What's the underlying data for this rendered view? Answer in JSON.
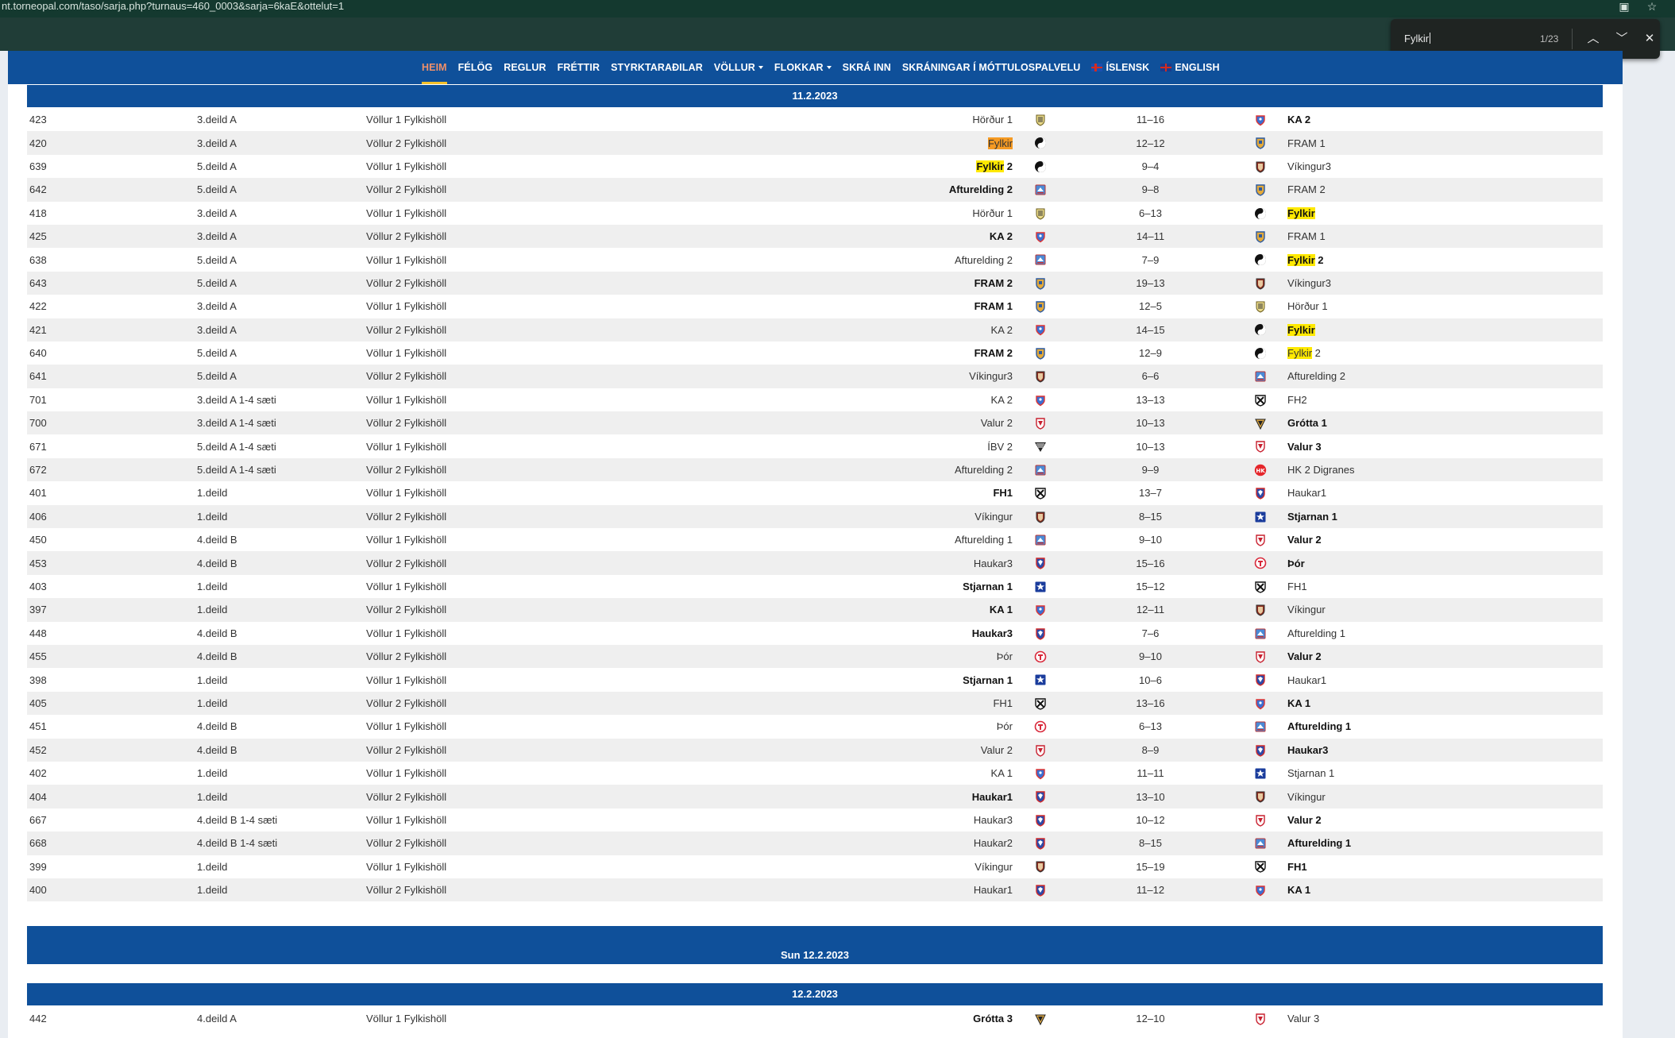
{
  "browser": {
    "url": "nt.torneopal.com/taso/sarja.php?turnaus=460_0003&sarja=6kaE&ottelut=1"
  },
  "find": {
    "query": "Fylkir",
    "count": "1/23"
  },
  "nav": {
    "items": [
      {
        "label": "HEIM",
        "active": true
      },
      {
        "label": "FÉLÖG"
      },
      {
        "label": "REGLUR"
      },
      {
        "label": "FRÉTTIR"
      },
      {
        "label": "STYRKTARAÐILAR"
      },
      {
        "label": "VÖLLUR",
        "dropdown": true
      },
      {
        "label": "FLOKKAR",
        "dropdown": true
      },
      {
        "label": "SKRÁ INN"
      },
      {
        "label": "SKRÁNINGAR Í MÓTTULOSPALVELU"
      },
      {
        "label": "ÍSLENSK",
        "flag": "is"
      },
      {
        "label": "ENGLISH",
        "flag": "en"
      }
    ]
  },
  "day1": {
    "date": "11.2.2023",
    "games": [
      {
        "no": "423",
        "div": "3.deild A",
        "venue": "Völlur 1 Fylkishöll",
        "home": "Hörður 1",
        "hc": "hordur",
        "score": "11–16",
        "away": "KA 2",
        "ac": "ka",
        "w": "a"
      },
      {
        "no": "420",
        "div": "3.deild A",
        "venue": "Völlur 2 Fylkishöll",
        "home": "Fylkir",
        "hc": "fylkir",
        "score": "12–12",
        "away": "FRAM 1",
        "ac": "fram",
        "w": "",
        "hl": "home",
        "cur": true
      },
      {
        "no": "639",
        "div": "5.deild A",
        "venue": "Völlur 1 Fylkishöll",
        "home": "Fylkir 2",
        "hc": "fylkir",
        "score": "9–4",
        "away": "Víkingur3",
        "ac": "vikingur",
        "w": "h",
        "hl": "home"
      },
      {
        "no": "642",
        "div": "5.deild A",
        "venue": "Völlur 2 Fylkishöll",
        "home": "Afturelding 2",
        "hc": "afturelding",
        "score": "9–8",
        "away": "FRAM 2",
        "ac": "fram",
        "w": "h"
      },
      {
        "no": "418",
        "div": "3.deild A",
        "venue": "Völlur 1 Fylkishöll",
        "home": "Hörður 1",
        "hc": "hordur",
        "score": "6–13",
        "away": "Fylkir",
        "ac": "fylkir",
        "w": "a",
        "hl": "away"
      },
      {
        "no": "425",
        "div": "3.deild A",
        "venue": "Völlur 2 Fylkishöll",
        "home": "KA 2",
        "hc": "ka",
        "score": "14–11",
        "away": "FRAM 1",
        "ac": "fram",
        "w": "h"
      },
      {
        "no": "638",
        "div": "5.deild A",
        "venue": "Völlur 1 Fylkishöll",
        "home": "Afturelding 2",
        "hc": "afturelding",
        "score": "7–9",
        "away": "Fylkir 2",
        "ac": "fylkir",
        "w": "a",
        "hl": "away"
      },
      {
        "no": "643",
        "div": "5.deild A",
        "venue": "Völlur 2 Fylkishöll",
        "home": "FRAM 2",
        "hc": "fram",
        "score": "19–13",
        "away": "Víkingur3",
        "ac": "vikingur",
        "w": "h"
      },
      {
        "no": "422",
        "div": "3.deild A",
        "venue": "Völlur 1 Fylkishöll",
        "home": "FRAM 1",
        "hc": "fram",
        "score": "12–5",
        "away": "Hörður 1",
        "ac": "hordur",
        "w": "h"
      },
      {
        "no": "421",
        "div": "3.deild A",
        "venue": "Völlur 2 Fylkishöll",
        "home": "KA 2",
        "hc": "ka",
        "score": "14–15",
        "away": "Fylkir",
        "ac": "fylkir",
        "w": "a",
        "hl": "away"
      },
      {
        "no": "640",
        "div": "5.deild A",
        "venue": "Völlur 1 Fylkishöll",
        "home": "FRAM 2",
        "hc": "fram",
        "score": "12–9",
        "away": "Fylkir 2",
        "ac": "fylkir",
        "w": "h",
        "hl": "away"
      },
      {
        "no": "641",
        "div": "5.deild A",
        "venue": "Völlur 2 Fylkishöll",
        "home": "Víkingur3",
        "hc": "vikingur",
        "score": "6–6",
        "away": "Afturelding 2",
        "ac": "afturelding",
        "w": ""
      },
      {
        "no": "701",
        "div": "3.deild A 1-4 sæti",
        "venue": "Völlur 1 Fylkishöll",
        "home": "KA 2",
        "hc": "ka",
        "score": "13–13",
        "away": "FH2",
        "ac": "fh",
        "w": ""
      },
      {
        "no": "700",
        "div": "3.deild A 1-4 sæti",
        "venue": "Völlur 2 Fylkishöll",
        "home": "Valur 2",
        "hc": "valur",
        "score": "10–13",
        "away": "Grótta 1",
        "ac": "grotta",
        "w": "a"
      },
      {
        "no": "671",
        "div": "5.deild A 1-4 sæti",
        "venue": "Völlur 1 Fylkishöll",
        "home": "ÍBV 2",
        "hc": "ibv",
        "score": "10–13",
        "away": "Valur 3",
        "ac": "valur",
        "w": "a"
      },
      {
        "no": "672",
        "div": "5.deild A 1-4 sæti",
        "venue": "Völlur 2 Fylkishöll",
        "home": "Afturelding 2",
        "hc": "afturelding",
        "score": "9–9",
        "away": "HK 2 Digranes",
        "ac": "hk",
        "w": ""
      },
      {
        "no": "401",
        "div": "1.deild",
        "venue": "Völlur 1 Fylkishöll",
        "home": "FH1",
        "hc": "fh",
        "score": "13–7",
        "away": "Haukar1",
        "ac": "haukar",
        "w": "h"
      },
      {
        "no": "406",
        "div": "1.deild",
        "venue": "Völlur 2 Fylkishöll",
        "home": "Víkingur",
        "hc": "vikingur",
        "score": "8–15",
        "away": "Stjarnan 1",
        "ac": "stjarnan",
        "w": "a"
      },
      {
        "no": "450",
        "div": "4.deild B",
        "venue": "Völlur 1 Fylkishöll",
        "home": "Afturelding 1",
        "hc": "afturelding",
        "score": "9–10",
        "away": "Valur 2",
        "ac": "valur",
        "w": "a"
      },
      {
        "no": "453",
        "div": "4.deild B",
        "venue": "Völlur 2 Fylkishöll",
        "home": "Haukar3",
        "hc": "haukar",
        "score": "15–16",
        "away": "Þór",
        "ac": "thor",
        "w": "a"
      },
      {
        "no": "403",
        "div": "1.deild",
        "venue": "Völlur 1 Fylkishöll",
        "home": "Stjarnan 1",
        "hc": "stjarnan",
        "score": "15–12",
        "away": "FH1",
        "ac": "fh",
        "w": "h"
      },
      {
        "no": "397",
        "div": "1.deild",
        "venue": "Völlur 2 Fylkishöll",
        "home": "KA 1",
        "hc": "ka",
        "score": "12–11",
        "away": "Víkingur",
        "ac": "vikingur",
        "w": "h"
      },
      {
        "no": "448",
        "div": "4.deild B",
        "venue": "Völlur 1 Fylkishöll",
        "home": "Haukar3",
        "hc": "haukar",
        "score": "7–6",
        "away": "Afturelding 1",
        "ac": "afturelding",
        "w": "h"
      },
      {
        "no": "455",
        "div": "4.deild B",
        "venue": "Völlur 2 Fylkishöll",
        "home": "Þór",
        "hc": "thor",
        "score": "9–10",
        "away": "Valur 2",
        "ac": "valur",
        "w": "a"
      },
      {
        "no": "398",
        "div": "1.deild",
        "venue": "Völlur 1 Fylkishöll",
        "home": "Stjarnan 1",
        "hc": "stjarnan",
        "score": "10–6",
        "away": "Haukar1",
        "ac": "haukar",
        "w": "h"
      },
      {
        "no": "405",
        "div": "1.deild",
        "venue": "Völlur 2 Fylkishöll",
        "home": "FH1",
        "hc": "fh",
        "score": "13–16",
        "away": "KA 1",
        "ac": "ka",
        "w": "a"
      },
      {
        "no": "451",
        "div": "4.deild B",
        "venue": "Völlur 1 Fylkishöll",
        "home": "Þór",
        "hc": "thor",
        "score": "6–13",
        "away": "Afturelding 1",
        "ac": "afturelding",
        "w": "a"
      },
      {
        "no": "452",
        "div": "4.deild B",
        "venue": "Völlur 2 Fylkishöll",
        "home": "Valur 2",
        "hc": "valur",
        "score": "8–9",
        "away": "Haukar3",
        "ac": "haukar",
        "w": "a"
      },
      {
        "no": "402",
        "div": "1.deild",
        "venue": "Völlur 1 Fylkishöll",
        "home": "KA 1",
        "hc": "ka",
        "score": "11–11",
        "away": "Stjarnan 1",
        "ac": "stjarnan",
        "w": ""
      },
      {
        "no": "404",
        "div": "1.deild",
        "venue": "Völlur 2 Fylkishöll",
        "home": "Haukar1",
        "hc": "haukar",
        "score": "13–10",
        "away": "Víkingur",
        "ac": "vikingur",
        "w": "h"
      },
      {
        "no": "667",
        "div": "4.deild B 1-4 sæti",
        "venue": "Völlur 1 Fylkishöll",
        "home": "Haukar3",
        "hc": "haukar",
        "score": "10–12",
        "away": "Valur 2",
        "ac": "valur",
        "w": "a"
      },
      {
        "no": "668",
        "div": "4.deild B 1-4 sæti",
        "venue": "Völlur 2 Fylkishöll",
        "home": "Haukar2",
        "hc": "haukar",
        "score": "8–15",
        "away": "Afturelding 1",
        "ac": "afturelding",
        "w": "a"
      },
      {
        "no": "399",
        "div": "1.deild",
        "venue": "Völlur 1 Fylkishöll",
        "home": "Víkingur",
        "hc": "vikingur",
        "score": "15–19",
        "away": "FH1",
        "ac": "fh",
        "w": "a"
      },
      {
        "no": "400",
        "div": "1.deild",
        "venue": "Völlur 2 Fylkishöll",
        "home": "Haukar1",
        "hc": "haukar",
        "score": "11–12",
        "away": "KA 1",
        "ac": "ka",
        "w": "a"
      }
    ]
  },
  "day2": {
    "heading": "Sun 12.2.2023",
    "date": "12.2.2023",
    "games": [
      {
        "no": "442",
        "div": "4.deild A",
        "venue": "Völlur 1 Fylkishöll",
        "home": "Grótta 3",
        "hc": "grotta",
        "score": "12–10",
        "away": "Valur 3",
        "ac": "valur",
        "w": "h"
      }
    ]
  },
  "colors": {
    "brand_blue": "#0f509a",
    "nav_active": "#f0906a",
    "highlight": "#ffe900",
    "highlight_current": "#f59a23"
  }
}
